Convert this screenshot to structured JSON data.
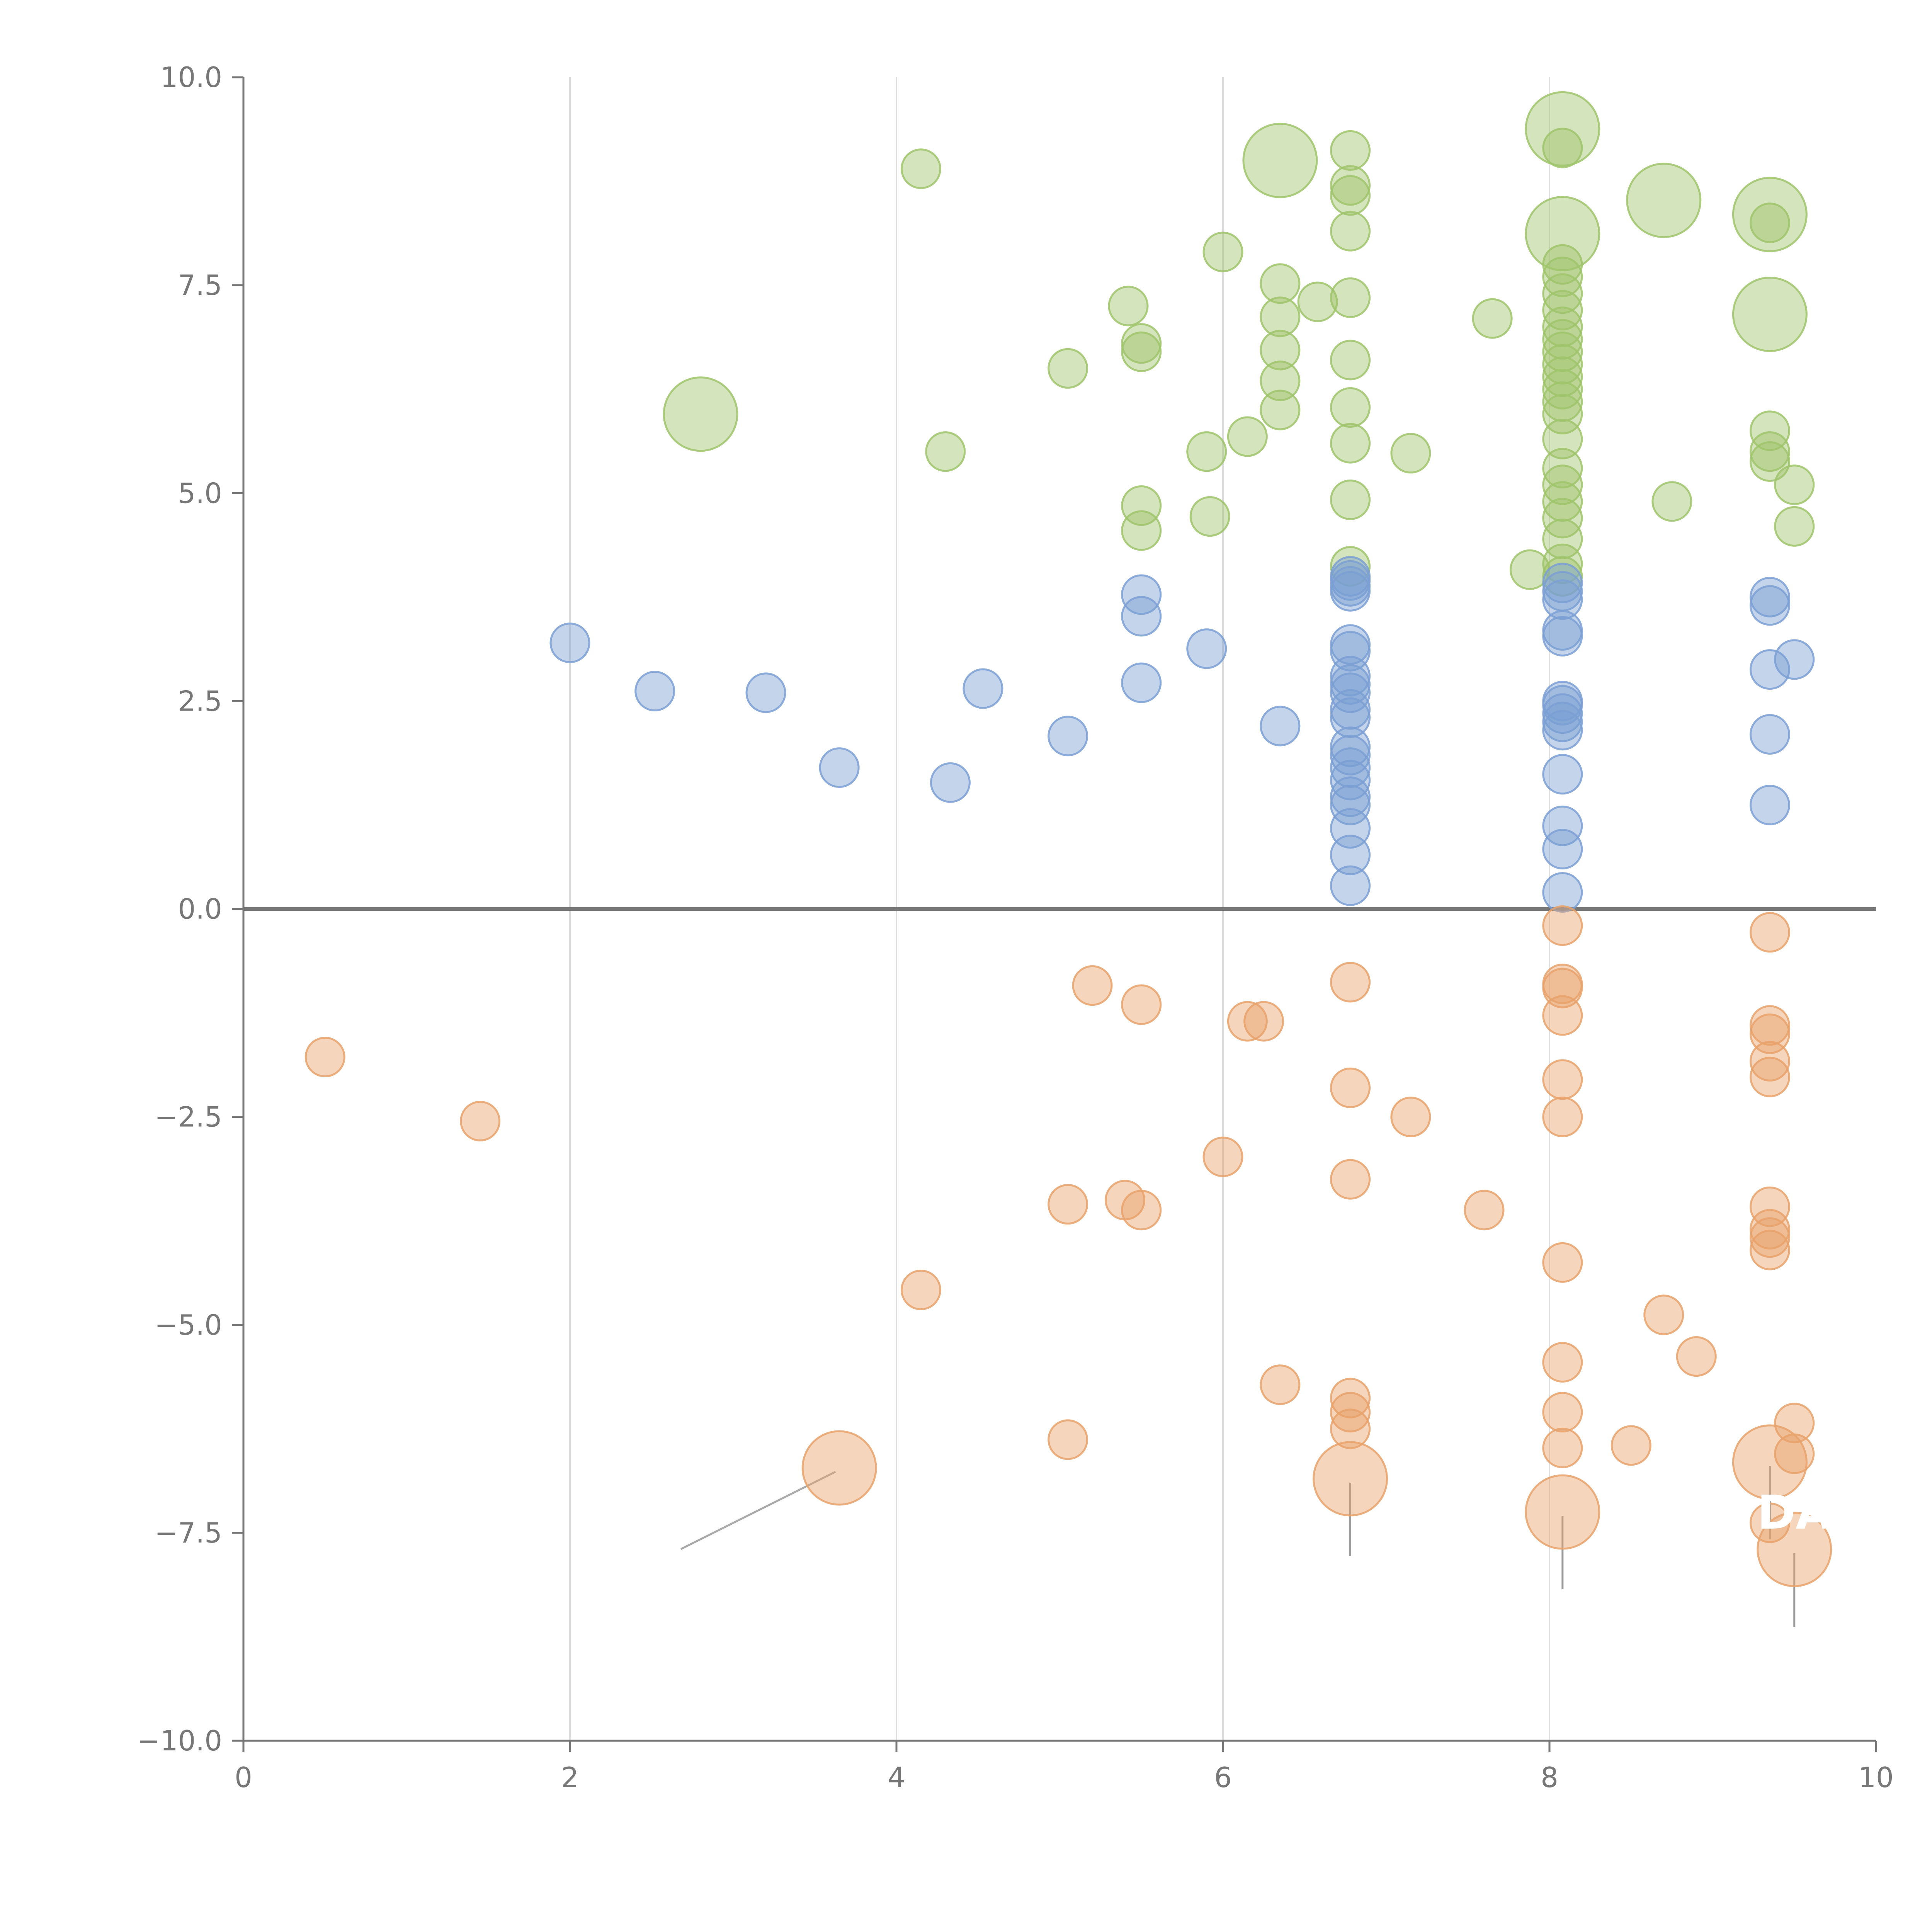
{
  "chart_data": {
    "type": "scatter",
    "title": "",
    "xlabel": "",
    "ylabel": "",
    "xlim": [
      0,
      10
    ],
    "ylim": [
      -10,
      10
    ],
    "x_ticks": [
      "0",
      "2",
      "4",
      "6",
      "8",
      "10"
    ],
    "y_ticks": [
      "−10.0",
      "−7.5",
      "−5.0",
      "−2.5",
      "0.0",
      "2.5",
      "5.0",
      "7.5",
      "10.0"
    ],
    "vertical_gridlines_at": [
      2,
      4,
      6,
      8
    ],
    "zero_line_y": 0,
    "legend": "none",
    "bubble_sizes": "small points uniform; a few large highlighted bubbles",
    "series": [
      {
        "color": "#9fc46b",
        "points": [
          [
            4.15,
            8.9
          ],
          [
            4.3,
            5.5
          ],
          [
            5.05,
            6.5
          ],
          [
            5.42,
            7.25
          ],
          [
            5.5,
            6.8
          ],
          [
            5.5,
            6.7
          ],
          [
            5.5,
            4.85
          ],
          [
            5.5,
            4.55
          ],
          [
            5.9,
            5.5
          ],
          [
            5.92,
            4.72
          ],
          [
            6.0,
            7.9
          ],
          [
            6.15,
            5.68
          ],
          [
            6.35,
            7.52
          ],
          [
            6.35,
            7.12
          ],
          [
            6.35,
            6.72
          ],
          [
            6.35,
            6.35
          ],
          [
            6.35,
            6.0
          ],
          [
            6.58,
            7.3
          ],
          [
            6.78,
            9.12
          ],
          [
            6.78,
            8.7
          ],
          [
            6.78,
            8.58
          ],
          [
            6.78,
            8.15
          ],
          [
            6.78,
            7.35
          ],
          [
            6.78,
            6.6
          ],
          [
            6.78,
            6.03
          ],
          [
            6.78,
            5.6
          ],
          [
            6.78,
            4.92
          ],
          [
            6.78,
            4.12
          ],
          [
            7.15,
            5.48
          ],
          [
            7.65,
            7.1
          ],
          [
            7.88,
            4.08
          ],
          [
            8.08,
            9.15
          ],
          [
            8.08,
            7.75
          ],
          [
            8.08,
            7.6
          ],
          [
            8.08,
            7.4
          ],
          [
            8.08,
            7.2
          ],
          [
            8.08,
            7.0
          ],
          [
            8.08,
            6.85
          ],
          [
            8.08,
            6.7
          ],
          [
            8.08,
            6.55
          ],
          [
            8.08,
            6.4
          ],
          [
            8.08,
            6.25
          ],
          [
            8.08,
            6.1
          ],
          [
            8.08,
            5.95
          ],
          [
            8.08,
            5.65
          ],
          [
            8.08,
            5.3
          ],
          [
            8.08,
            5.1
          ],
          [
            8.08,
            4.9
          ],
          [
            8.08,
            4.7
          ],
          [
            8.08,
            4.45
          ],
          [
            8.08,
            4.15
          ],
          [
            8.08,
            4.0
          ],
          [
            8.75,
            4.9
          ],
          [
            9.35,
            8.25
          ],
          [
            9.35,
            5.75
          ],
          [
            9.35,
            5.5
          ],
          [
            9.35,
            5.38
          ],
          [
            9.5,
            5.1
          ],
          [
            9.5,
            4.6
          ]
        ],
        "highlights": [
          [
            2.8,
            5.95
          ],
          [
            6.35,
            9.0
          ],
          [
            8.08,
            9.38
          ],
          [
            8.08,
            8.12
          ],
          [
            8.7,
            8.52
          ],
          [
            9.35,
            8.35
          ],
          [
            9.35,
            7.15
          ]
        ]
      },
      {
        "color": "#7b9fd3",
        "points": [
          [
            2.0,
            3.2
          ],
          [
            2.52,
            2.62
          ],
          [
            3.2,
            2.6
          ],
          [
            3.65,
            1.7
          ],
          [
            4.33,
            1.52
          ],
          [
            4.53,
            2.65
          ],
          [
            5.05,
            2.08
          ],
          [
            5.5,
            3.78
          ],
          [
            5.5,
            3.52
          ],
          [
            5.5,
            2.72
          ],
          [
            5.9,
            3.13
          ],
          [
            6.35,
            2.2
          ],
          [
            6.78,
            4.0
          ],
          [
            6.78,
            3.95
          ],
          [
            6.78,
            3.88
          ],
          [
            6.78,
            3.82
          ],
          [
            6.78,
            3.18
          ],
          [
            6.78,
            3.1
          ],
          [
            6.78,
            2.8
          ],
          [
            6.78,
            2.7
          ],
          [
            6.78,
            2.6
          ],
          [
            6.78,
            2.4
          ],
          [
            6.78,
            2.3
          ],
          [
            6.78,
            1.95
          ],
          [
            6.78,
            1.85
          ],
          [
            6.78,
            1.7
          ],
          [
            6.78,
            1.55
          ],
          [
            6.78,
            1.35
          ],
          [
            6.78,
            1.25
          ],
          [
            6.78,
            0.97
          ],
          [
            6.78,
            0.65
          ],
          [
            6.78,
            0.28
          ],
          [
            8.08,
            3.92
          ],
          [
            8.08,
            3.82
          ],
          [
            8.08,
            3.72
          ],
          [
            8.08,
            3.35
          ],
          [
            8.08,
            3.28
          ],
          [
            8.08,
            2.5
          ],
          [
            8.08,
            2.45
          ],
          [
            8.08,
            2.35
          ],
          [
            8.08,
            2.25
          ],
          [
            8.08,
            2.15
          ],
          [
            8.08,
            1.62
          ],
          [
            8.08,
            1.0
          ],
          [
            8.08,
            0.72
          ],
          [
            8.08,
            0.2
          ],
          [
            9.35,
            3.75
          ],
          [
            9.35,
            3.65
          ],
          [
            9.35,
            2.88
          ],
          [
            9.35,
            2.1
          ],
          [
            9.35,
            1.25
          ],
          [
            9.5,
            3.0
          ]
        ],
        "highlights": []
      },
      {
        "color": "#e8a26b",
        "points": [
          [
            0.5,
            -1.78
          ],
          [
            1.45,
            -2.55
          ],
          [
            4.15,
            -4.58
          ],
          [
            5.05,
            -3.55
          ],
          [
            5.05,
            -6.38
          ],
          [
            5.2,
            -0.92
          ],
          [
            5.4,
            -3.5
          ],
          [
            5.5,
            -1.15
          ],
          [
            5.5,
            -3.62
          ],
          [
            6.0,
            -2.98
          ],
          [
            6.15,
            -1.35
          ],
          [
            6.25,
            -1.35
          ],
          [
            6.35,
            -5.72
          ],
          [
            6.78,
            -0.88
          ],
          [
            6.78,
            -2.15
          ],
          [
            6.78,
            -3.25
          ],
          [
            6.78,
            -5.88
          ],
          [
            6.78,
            -6.05
          ],
          [
            6.78,
            -6.25
          ],
          [
            7.15,
            -2.5
          ],
          [
            7.6,
            -3.62
          ],
          [
            8.08,
            -0.2
          ],
          [
            8.08,
            -0.9
          ],
          [
            8.08,
            -0.95
          ],
          [
            8.08,
            -1.28
          ],
          [
            8.08,
            -2.05
          ],
          [
            8.08,
            -2.5
          ],
          [
            8.08,
            -4.25
          ],
          [
            8.08,
            -5.45
          ],
          [
            8.08,
            -6.05
          ],
          [
            8.08,
            -6.48
          ],
          [
            8.5,
            -6.45
          ],
          [
            8.7,
            -4.88
          ],
          [
            8.9,
            -5.38
          ],
          [
            9.35,
            -0.28
          ],
          [
            9.35,
            -1.4
          ],
          [
            9.35,
            -1.5
          ],
          [
            9.35,
            -1.83
          ],
          [
            9.35,
            -2.02
          ],
          [
            9.35,
            -3.58
          ],
          [
            9.35,
            -3.85
          ],
          [
            9.35,
            -3.95
          ],
          [
            9.35,
            -4.1
          ],
          [
            9.35,
            -7.38
          ],
          [
            9.5,
            -6.18
          ],
          [
            9.5,
            -6.55
          ]
        ],
        "highlights": [
          [
            3.65,
            -6.72
          ],
          [
            6.78,
            -6.85
          ],
          [
            8.08,
            -7.25
          ],
          [
            9.35,
            -6.65
          ],
          [
            9.5,
            -7.7
          ]
        ]
      }
    ],
    "annotations": [
      {
        "text": "DA",
        "x": 9.5,
        "y": -7.45
      }
    ]
  }
}
